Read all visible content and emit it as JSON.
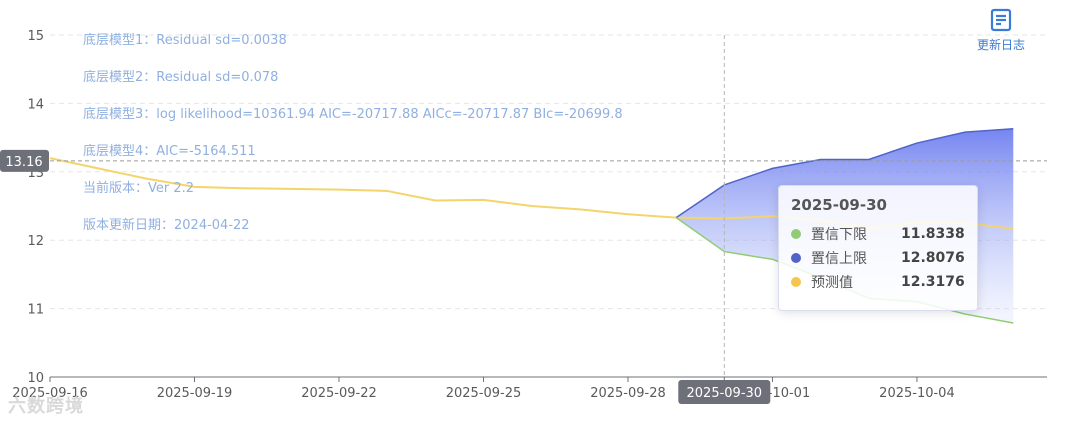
{
  "info_lines": [
    "底层模型1：Residual sd=0.0038",
    "底层模型2：Residual sd=0.078",
    "底层模型3：log likelihood=10361.94 AIC=-20717.88 AICc=-20717.87 BIc=-20699.8",
    "底层模型4：AIC=-5164.511",
    "当前版本：Ver 2.2",
    "版本更新日期：2024-04-22"
  ],
  "changelog": {
    "label": "更新日志",
    "icon": "document-icon",
    "color": "#3a7bd5"
  },
  "watermark": "六数跨境",
  "crosshair": {
    "y_label": "13.16",
    "x_label": "2025-09-30"
  },
  "tooltip": {
    "title": "2025-09-30",
    "rows": [
      {
        "name": "置信下限",
        "value": "11.8338",
        "color": "#91cc75"
      },
      {
        "name": "置信上限",
        "value": "12.8076",
        "color": "#4f63c9"
      },
      {
        "name": "预测值",
        "value": "12.3176",
        "color": "#f4c64d"
      }
    ]
  },
  "chart_data": {
    "type": "line",
    "x_ticks": [
      "2025-09-16",
      "2025-09-19",
      "2025-09-22",
      "2025-09-25",
      "2025-09-28",
      "2025-09-30",
      "2025-10-01",
      "2025-10-04"
    ],
    "ylim": [
      10,
      15
    ],
    "y_ticks": [
      10,
      11,
      12,
      13,
      14,
      15
    ],
    "grid": true,
    "crosshair_x": "2025-09-30",
    "crosshair_y": 13.16,
    "series": [
      {
        "name": "预测值",
        "color": "#f4d46c",
        "points": [
          [
            "2025-09-16",
            13.2
          ],
          [
            "2025-09-17",
            13.05
          ],
          [
            "2025-09-18",
            12.9
          ],
          [
            "2025-09-19",
            12.78
          ],
          [
            "2025-09-20",
            12.76
          ],
          [
            "2025-09-21",
            12.75
          ],
          [
            "2025-09-22",
            12.74
          ],
          [
            "2025-09-23",
            12.72
          ],
          [
            "2025-09-24",
            12.58
          ],
          [
            "2025-09-25",
            12.59
          ],
          [
            "2025-09-26",
            12.5
          ],
          [
            "2025-09-27",
            12.45
          ],
          [
            "2025-09-28",
            12.38
          ],
          [
            "2025-09-29",
            12.33
          ],
          [
            "2025-09-30",
            12.3176
          ],
          [
            "2025-10-01",
            12.35
          ],
          [
            "2025-10-02",
            12.29
          ],
          [
            "2025-10-03",
            12.18
          ],
          [
            "2025-10-04",
            12.26
          ],
          [
            "2025-10-05",
            12.25
          ],
          [
            "2025-10-06",
            12.17
          ]
        ]
      },
      {
        "name": "置信上限",
        "color": "#4f63c9",
        "points": [
          [
            "2025-09-29",
            12.33
          ],
          [
            "2025-09-30",
            12.8076
          ],
          [
            "2025-10-01",
            13.05
          ],
          [
            "2025-10-02",
            13.18
          ],
          [
            "2025-10-03",
            13.18
          ],
          [
            "2025-10-04",
            13.42
          ],
          [
            "2025-10-05",
            13.58
          ],
          [
            "2025-10-06",
            13.63
          ]
        ]
      },
      {
        "name": "置信下限",
        "color": "#91cc75",
        "points": [
          [
            "2025-09-29",
            12.33
          ],
          [
            "2025-09-30",
            11.8338
          ],
          [
            "2025-10-01",
            11.72
          ],
          [
            "2025-10-02",
            11.45
          ],
          [
            "2025-10-03",
            11.15
          ],
          [
            "2025-10-04",
            11.1
          ],
          [
            "2025-10-05",
            10.92
          ],
          [
            "2025-10-06",
            10.79
          ]
        ]
      }
    ]
  }
}
